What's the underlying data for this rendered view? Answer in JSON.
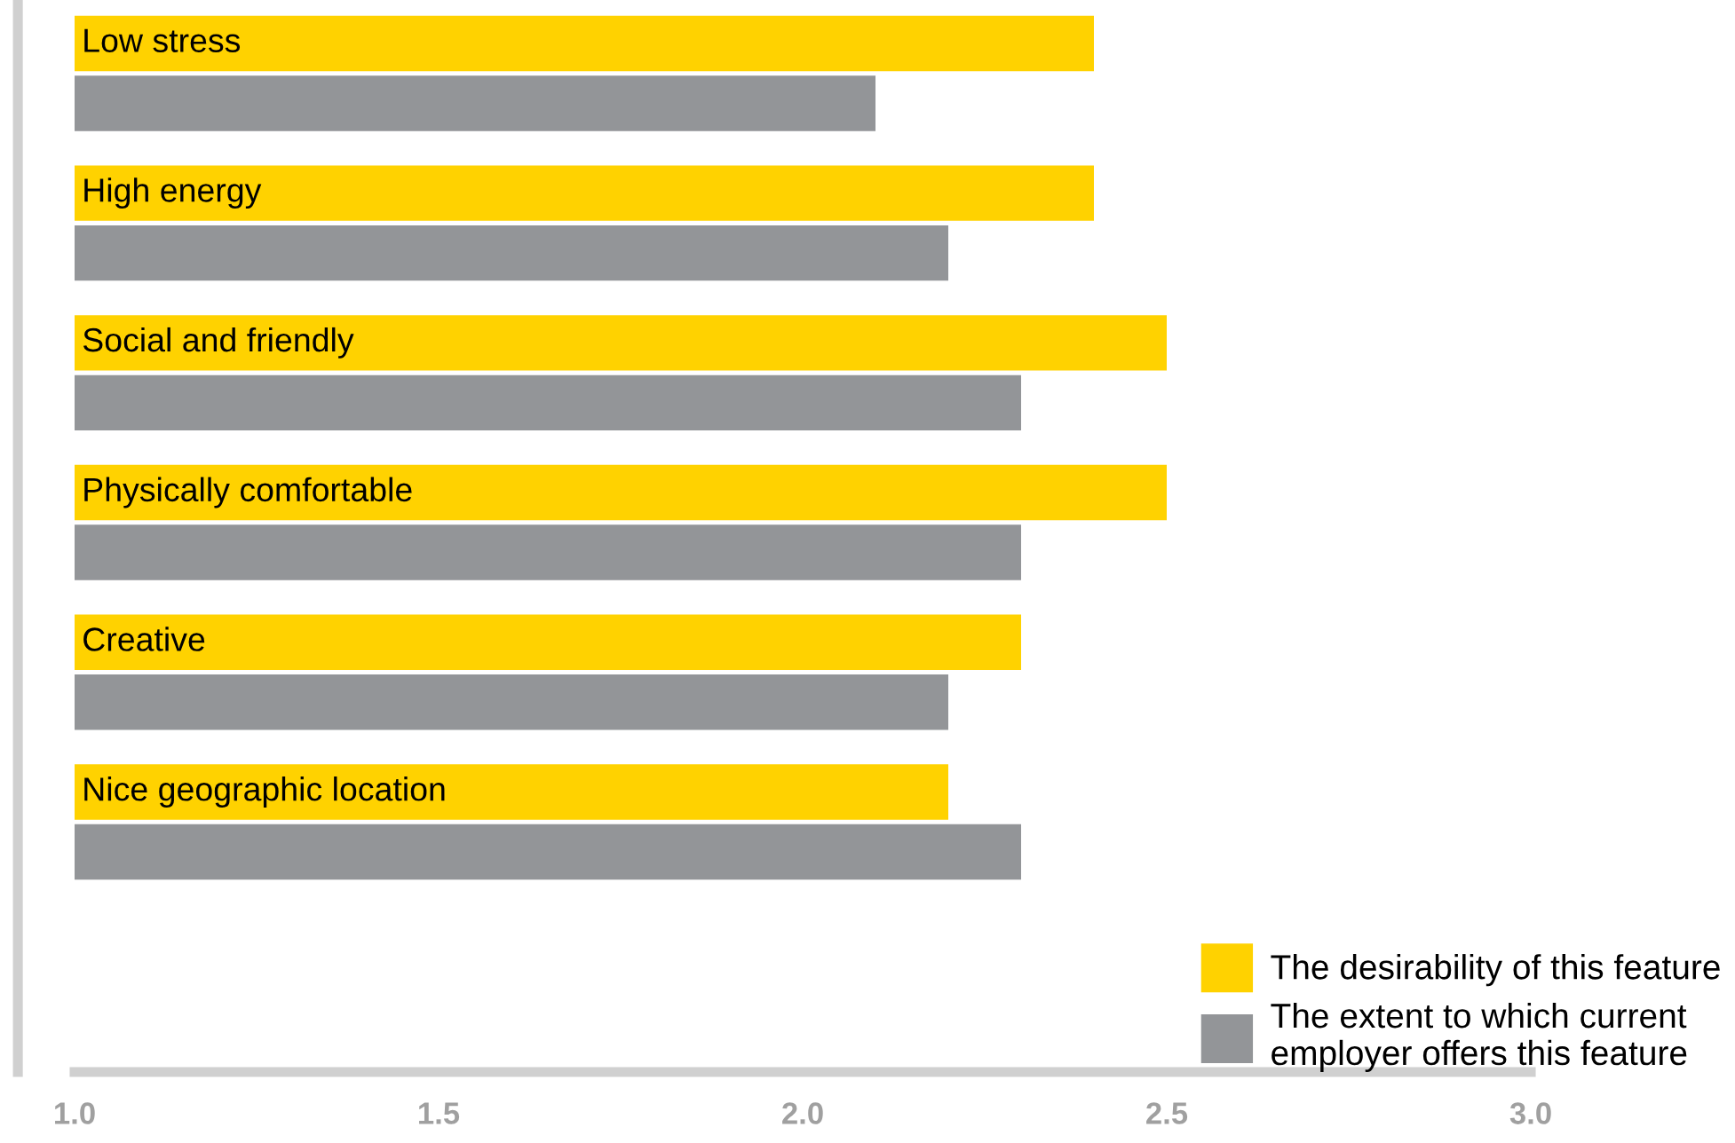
{
  "chart_data": {
    "type": "bar",
    "orientation": "horizontal",
    "categories": [
      "Low stress",
      "High energy",
      "Social and friendly",
      "Physically comfortable",
      "Creative",
      "Nice geographic location"
    ],
    "series": [
      {
        "name": "The desirability of this feature",
        "color": "#ffd200",
        "values": [
          2.4,
          2.4,
          2.5,
          2.5,
          2.3,
          2.2
        ]
      },
      {
        "name": "The extent to which current employer offers this feature",
        "color": "#939598",
        "values": [
          2.1,
          2.2,
          2.3,
          2.3,
          2.2,
          2.3
        ]
      }
    ],
    "xlim": [
      1.0,
      3.0
    ],
    "xticks": [
      {
        "value": 1.0,
        "label": "1.0"
      },
      {
        "value": 1.5,
        "label": "1.5"
      },
      {
        "value": 2.0,
        "label": "2.0"
      },
      {
        "value": 2.5,
        "label": "2.5"
      },
      {
        "value": 3.0,
        "label": "3.0"
      }
    ],
    "grid": false,
    "legend": "bottom right"
  }
}
